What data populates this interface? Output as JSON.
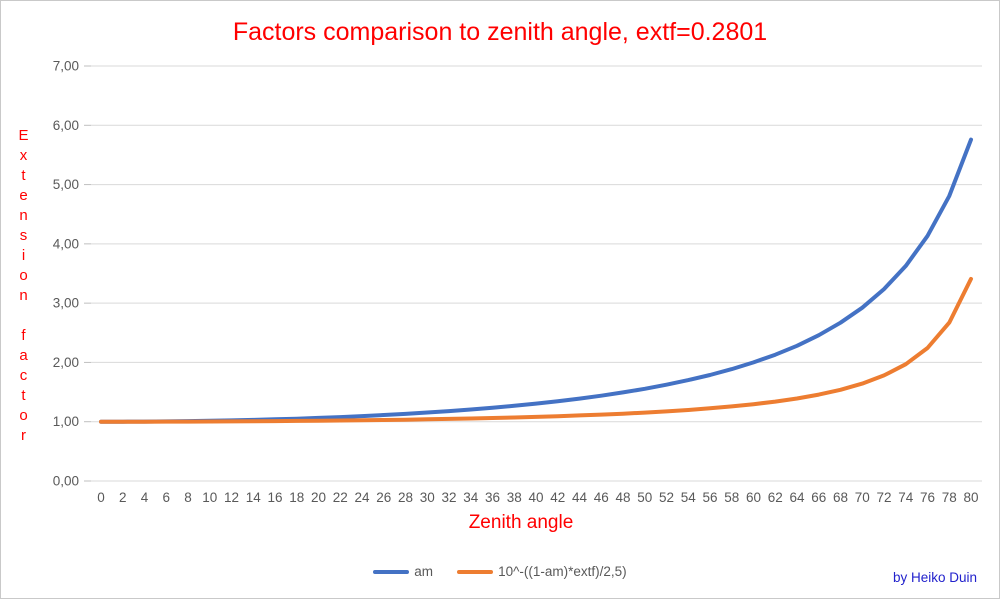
{
  "attribution": "by Heiko Duin",
  "colors": {
    "title_red": "#ff0000",
    "axis_label_red": "#ff0000",
    "tick_text_gray": "#595959",
    "gridline_gray": "#d9d9d9",
    "tick_mark_gray": "#bfbfbf",
    "series_blue": "#4472c4",
    "series_orange": "#ed7d31",
    "attribution_blue": "#2222cc"
  },
  "chart_data": {
    "type": "line",
    "title": "Factors comparison to zenith angle, extf=0.2801",
    "xlabel": "Zenith angle",
    "ylabel": "Extension factor",
    "x": [
      0,
      2,
      4,
      6,
      8,
      10,
      12,
      14,
      16,
      18,
      20,
      22,
      24,
      26,
      28,
      30,
      32,
      34,
      36,
      38,
      40,
      42,
      44,
      46,
      48,
      50,
      52,
      54,
      56,
      58,
      60,
      62,
      64,
      66,
      68,
      70,
      72,
      74,
      76,
      78,
      80
    ],
    "series": [
      {
        "name": "am",
        "color": "#4472c4",
        "values": [
          1.0,
          1.0006,
          1.0024,
          1.0055,
          1.0098,
          1.0154,
          1.0223,
          1.0306,
          1.0403,
          1.0515,
          1.0642,
          1.0785,
          1.0946,
          1.1126,
          1.1326,
          1.1547,
          1.1792,
          1.2062,
          1.2361,
          1.269,
          1.3054,
          1.3456,
          1.3902,
          1.4396,
          1.4945,
          1.5557,
          1.6243,
          1.7013,
          1.7883,
          1.8871,
          2.0,
          2.1301,
          2.2812,
          2.4586,
          2.6695,
          2.9238,
          3.2361,
          3.628,
          4.1336,
          4.8097,
          5.7588
        ]
      },
      {
        "name": "10^-((1-am)*extf)/2,5)",
        "color": "#ed7d31",
        "values": [
          1.0,
          1.0002,
          1.0006,
          1.0014,
          1.0025,
          1.004,
          1.0058,
          1.0079,
          1.0104,
          1.0134,
          1.0167,
          1.0205,
          1.0247,
          1.0295,
          1.0348,
          1.0407,
          1.0473,
          1.0546,
          1.0628,
          1.0719,
          1.082,
          1.0932,
          1.1058,
          1.12,
          1.136,
          1.1541,
          1.1747,
          1.1984,
          1.2259,
          1.2579,
          1.2947,
          1.3386,
          1.3915,
          1.4567,
          1.5385,
          1.6431,
          1.7807,
          1.9697,
          2.2442,
          2.6723,
          3.4097
        ]
      }
    ],
    "ylim": [
      0,
      7
    ],
    "ytick_step": 1,
    "ytick_labels": [
      "0,00",
      "1,00",
      "2,00",
      "3,00",
      "4,00",
      "5,00",
      "6,00",
      "7,00"
    ],
    "grid": "horizontal",
    "legend_position": "bottom"
  }
}
